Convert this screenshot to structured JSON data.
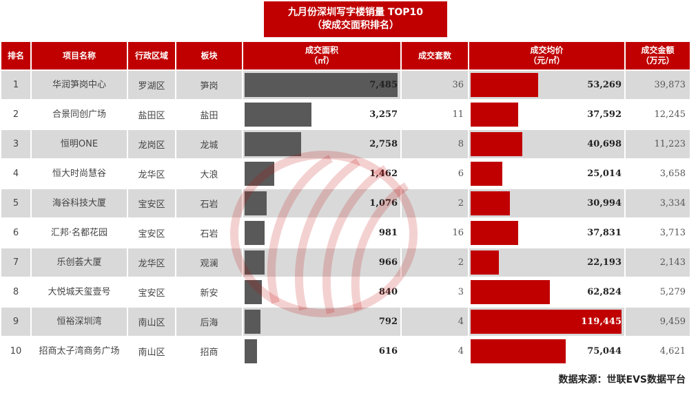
{
  "title": {
    "line1": "九月份深圳写字楼销量 TOP10",
    "line2": "（按成交面积排名）"
  },
  "source": "数据来源：世联EVS数据平台",
  "headers": {
    "rank": "排名",
    "name": "项目名称",
    "district": "行政区域",
    "block": "板块",
    "area_l1": "成交面积",
    "area_l2": "（㎡）",
    "units": "成交套数",
    "price_l1": "成交均价",
    "price_l2": "（元/㎡）",
    "amount_l1": "成交金额",
    "amount_l2": "（万元）"
  },
  "colors": {
    "header_bg": "#c00000",
    "area_bar": "#595959",
    "price_bar": "#c00000",
    "row_alt": "#d9d9d9"
  },
  "chart_data": {
    "type": "table",
    "columns": [
      "排名",
      "项目名称",
      "行政区域",
      "板块",
      "成交面积（㎡）",
      "成交套数",
      "成交均价（元/㎡）",
      "成交金额（万元）"
    ],
    "area_max": 7485,
    "price_max": 119445,
    "rows": [
      {
        "rank": "1",
        "name": "华润笋岗中心",
        "district": "罗湖区",
        "block": "笋岗",
        "area": 7485,
        "area_label": "7,485",
        "units": "36",
        "price": 53269,
        "price_label": "53,269",
        "amount": "39,873"
      },
      {
        "rank": "2",
        "name": "合景同创广场",
        "district": "盐田区",
        "block": "盐田",
        "area": 3257,
        "area_label": "3,257",
        "units": "11",
        "price": 37592,
        "price_label": "37,592",
        "amount": "12,245"
      },
      {
        "rank": "3",
        "name": "恒明ONE",
        "district": "龙岗区",
        "block": "龙城",
        "area": 2758,
        "area_label": "2,758",
        "units": "8",
        "price": 40698,
        "price_label": "40,698",
        "amount": "11,223"
      },
      {
        "rank": "4",
        "name": "恒大时尚慧谷",
        "district": "龙华区",
        "block": "大浪",
        "area": 1462,
        "area_label": "1,462",
        "units": "6",
        "price": 25014,
        "price_label": "25,014",
        "amount": "3,658"
      },
      {
        "rank": "5",
        "name": "海谷科技大厦",
        "district": "宝安区",
        "block": "石岩",
        "area": 1076,
        "area_label": "1,076",
        "units": "2",
        "price": 30994,
        "price_label": "30,994",
        "amount": "3,334"
      },
      {
        "rank": "6",
        "name": "汇邦·名都花园",
        "district": "宝安区",
        "block": "石岩",
        "area": 981,
        "area_label": "981",
        "units": "16",
        "price": 37831,
        "price_label": "37,831",
        "amount": "3,713"
      },
      {
        "rank": "7",
        "name": "乐创荟大厦",
        "district": "龙华区",
        "block": "观澜",
        "area": 966,
        "area_label": "966",
        "units": "2",
        "price": 22193,
        "price_label": "22,193",
        "amount": "2,143"
      },
      {
        "rank": "8",
        "name": "大悦城天玺壹号",
        "district": "宝安区",
        "block": "新安",
        "area": 840,
        "area_label": "840",
        "units": "3",
        "price": 62824,
        "price_label": "62,824",
        "amount": "5,279"
      },
      {
        "rank": "9",
        "name": "恒裕深圳湾",
        "district": "南山区",
        "block": "后海",
        "area": 792,
        "area_label": "792",
        "units": "4",
        "price": 119445,
        "price_label": "119,445",
        "amount": "9,459"
      },
      {
        "rank": "10",
        "name": "招商太子湾商务广场",
        "district": "南山区",
        "block": "招商",
        "area": 616,
        "area_label": "616",
        "units": "4",
        "price": 75044,
        "price_label": "75,044",
        "amount": "4,621"
      }
    ]
  }
}
